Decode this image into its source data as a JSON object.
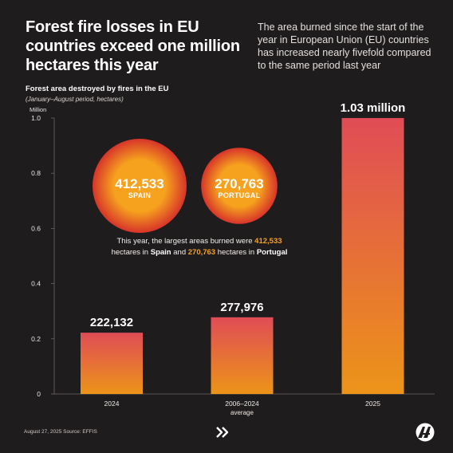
{
  "headline": "Forest fire losses in EU countries exceed one million hectares this year",
  "intro": "The area burned since the start of the year in European Union (EU) countries has increased nearly fivefold compared to the same period last year",
  "colors": {
    "background": "#1f1c1d",
    "bar_top": "#e04c56",
    "bar_bottom": "#ec9418",
    "highlight": "#f4a023",
    "bubble_center": "#f6a21e",
    "bubble_edge": "#d7342a"
  },
  "chart_data": {
    "type": "bar",
    "title": "Forest area destroyed by fires in the EU",
    "subtitle": "(January–August period, hectares)",
    "y_unit": "Million",
    "categories": [
      "2024",
      "2006–2024",
      "2025"
    ],
    "category_sublabels": [
      "",
      "average",
      ""
    ],
    "values": [
      222132,
      277976,
      1030000
    ],
    "data_labels": [
      "222,132",
      "277,976",
      "1.03 million"
    ],
    "ylim": [
      0,
      1.0
    ],
    "y_ticks": [
      "0",
      "0.2",
      "0.4",
      "0.6",
      "0.8",
      "1.0"
    ],
    "y_tick_values": [
      0,
      200000,
      400000,
      600000,
      800000,
      1000000
    ],
    "grid": false
  },
  "bubbles": [
    {
      "value": "412,533",
      "label": "SPAIN",
      "hectares": 412533
    },
    {
      "value": "270,763",
      "label": "PORTUGAL",
      "hectares": 270763
    }
  ],
  "callout": {
    "part1": "This year, the largest areas burned were ",
    "spain_value": "412,533",
    "part2": "hectares in ",
    "spain": "Spain",
    "part3": " and ",
    "portugal_value": "270,763",
    "part4": " hectares in ",
    "portugal": "Portugal"
  },
  "footer": {
    "date_source": "August 27, 2025  Source: EFFIS"
  },
  "icons": {
    "nav": "double-chevron-right-icon",
    "logo": "agency-logo"
  }
}
